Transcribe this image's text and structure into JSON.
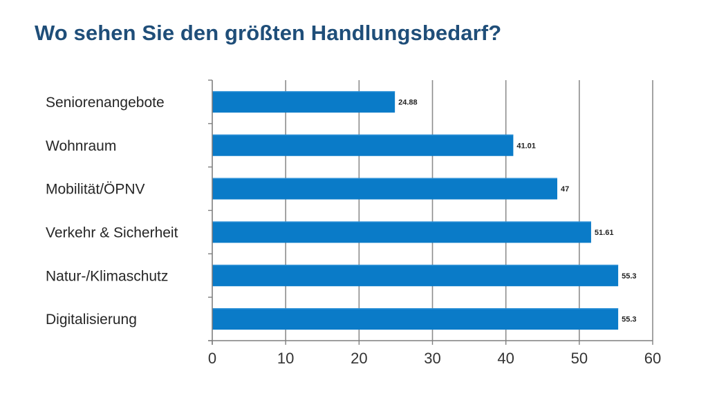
{
  "slide": {
    "title": "Wo sehen Sie den größten Handlungsbedarf?"
  },
  "colors": {
    "title": "#1f4e79",
    "bar": "#0a7bc8",
    "bar_highlight": "#2a8fd6",
    "gridline": "#8c8c8c",
    "axis": "#7f7f7f"
  },
  "chart_data": {
    "type": "bar",
    "orientation": "horizontal",
    "title": "Wo sehen Sie den größten Handlungsbedarf?",
    "xlabel": "",
    "ylabel": "",
    "categories": [
      "Seniorenangebote",
      "Wohnraum",
      "Mobilität/ÖPNV",
      "Verkehr & Sicherheit",
      "Natur-/Klimaschutz",
      "Digitalisierung"
    ],
    "values": [
      24.88,
      41.01,
      47,
      51.61,
      55.3,
      55.3
    ],
    "data_labels": [
      "24.88",
      "41.01",
      "47",
      "51.61",
      "55.3",
      "55.3"
    ],
    "xlim": [
      0,
      60
    ],
    "x_ticks": [
      0,
      10,
      20,
      30,
      40,
      50,
      60
    ],
    "x_tick_labels": [
      "0",
      "10",
      "20",
      "30",
      "40",
      "50",
      "60"
    ],
    "grid": "vertical",
    "legend": "none"
  }
}
